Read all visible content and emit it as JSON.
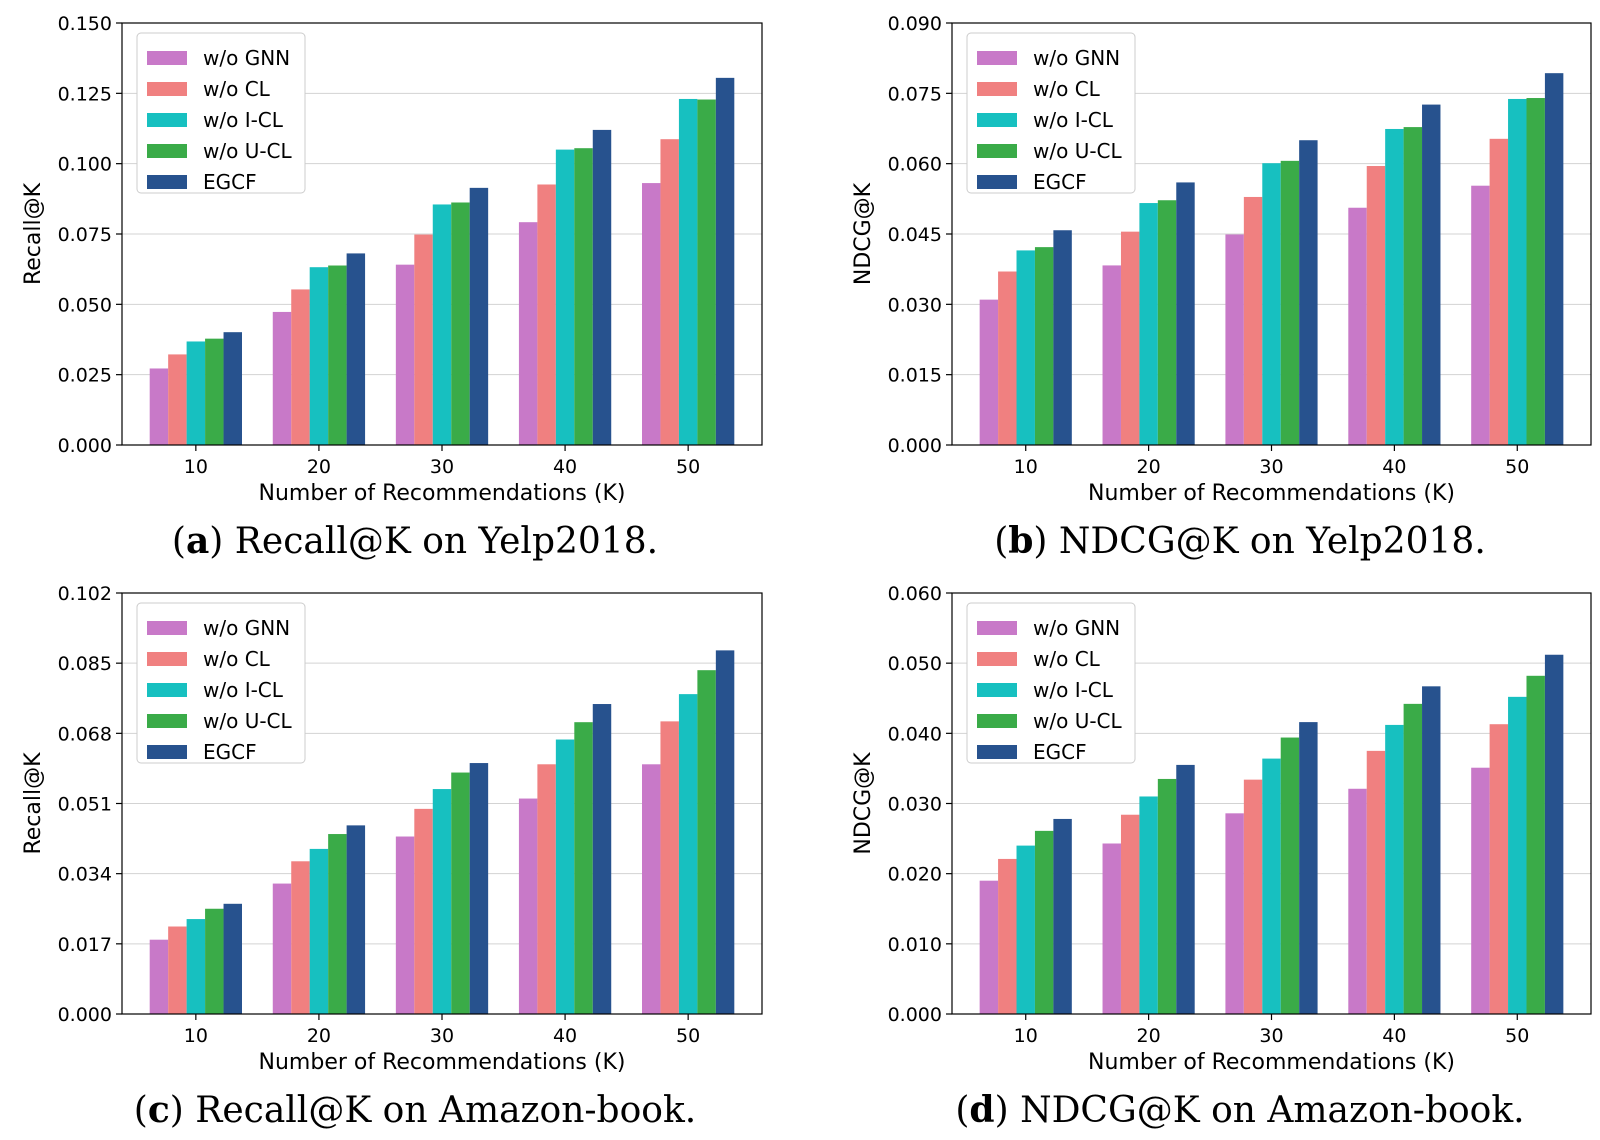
{
  "colors": {
    "w/o GNN": "#c879c8",
    "w/o CL": "#f08080",
    "w/o I-CL": "#17c0c0",
    "w/o U-CL": "#3aab48",
    "EGCF": "#27528e"
  },
  "chart_data": [
    {
      "type": "bar",
      "caption_letter": "(a)",
      "caption_text": " Recall@K on Yelp2018.",
      "xlabel": "Number of Recommendations (K)",
      "ylabel": "Recall@K",
      "categories": [
        "10",
        "20",
        "30",
        "40",
        "50"
      ],
      "ylim": [
        0,
        0.15
      ],
      "yticks": [
        "0.000",
        "0.025",
        "0.050",
        "0.075",
        "0.100",
        "0.125",
        "0.150"
      ],
      "legend_position": "top-left",
      "grid": "horizontal",
      "series": [
        {
          "name": "w/o GNN",
          "values": [
            0.0272,
            0.0473,
            0.0641,
            0.0792,
            0.0931
          ]
        },
        {
          "name": "w/o CL",
          "values": [
            0.0322,
            0.0553,
            0.0748,
            0.0926,
            0.1087
          ]
        },
        {
          "name": "w/o I-CL",
          "values": [
            0.0368,
            0.0632,
            0.0855,
            0.105,
            0.123
          ]
        },
        {
          "name": "w/o U-CL",
          "values": [
            0.0378,
            0.0638,
            0.0862,
            0.1055,
            0.1228
          ]
        },
        {
          "name": "EGCF",
          "values": [
            0.0401,
            0.0681,
            0.0914,
            0.112,
            0.1305
          ]
        }
      ]
    },
    {
      "type": "bar",
      "caption_letter": "(b)",
      "caption_text": " NDCG@K on Yelp2018.",
      "xlabel": "Number of Recommendations (K)",
      "ylabel": "NDCG@K",
      "categories": [
        "10",
        "20",
        "30",
        "40",
        "50"
      ],
      "ylim": [
        0,
        0.09
      ],
      "yticks": [
        "0.000",
        "0.015",
        "0.030",
        "0.045",
        "0.060",
        "0.075",
        "0.090"
      ],
      "legend_position": "top-left",
      "grid": "horizontal",
      "series": [
        {
          "name": "w/o GNN",
          "values": [
            0.031,
            0.0383,
            0.0449,
            0.0506,
            0.0553
          ]
        },
        {
          "name": "w/o CL",
          "values": [
            0.037,
            0.0455,
            0.0529,
            0.0595,
            0.0653
          ]
        },
        {
          "name": "w/o I-CL",
          "values": [
            0.0415,
            0.0516,
            0.0601,
            0.0674,
            0.0738
          ]
        },
        {
          "name": "w/o U-CL",
          "values": [
            0.0422,
            0.0522,
            0.0606,
            0.0678,
            0.074
          ]
        },
        {
          "name": "EGCF",
          "values": [
            0.0458,
            0.056,
            0.065,
            0.0726,
            0.0793
          ]
        }
      ]
    },
    {
      "type": "bar",
      "caption_letter": "(c)",
      "caption_text": " Recall@K on Amazon-book.",
      "xlabel": "Number of Recommendations (K)",
      "ylabel": "Recall@K",
      "categories": [
        "10",
        "20",
        "30",
        "40",
        "50"
      ],
      "ylim": [
        0,
        0.102
      ],
      "yticks": [
        "0.000",
        "0.017",
        "0.034",
        "0.051",
        "0.068",
        "0.085",
        "0.102"
      ],
      "legend_position": "top-left",
      "grid": "horizontal",
      "series": [
        {
          "name": "w/o GNN",
          "values": [
            0.018,
            0.0316,
            0.043,
            0.0522,
            0.0605
          ]
        },
        {
          "name": "w/o CL",
          "values": [
            0.0212,
            0.037,
            0.0497,
            0.0605,
            0.0709
          ]
        },
        {
          "name": "w/o I-CL",
          "values": [
            0.023,
            0.04,
            0.0545,
            0.0665,
            0.0775
          ]
        },
        {
          "name": "w/o U-CL",
          "values": [
            0.0255,
            0.0436,
            0.0585,
            0.0707,
            0.0833
          ]
        },
        {
          "name": "EGCF",
          "values": [
            0.0267,
            0.0457,
            0.0608,
            0.0751,
            0.0881
          ]
        }
      ]
    },
    {
      "type": "bar",
      "caption_letter": "(d)",
      "caption_text": " NDCG@K on Amazon-book.",
      "xlabel": "Number of Recommendations (K)",
      "ylabel": "NDCG@K",
      "categories": [
        "10",
        "20",
        "30",
        "40",
        "50"
      ],
      "ylim": [
        0,
        0.06
      ],
      "yticks": [
        "0.000",
        "0.010",
        "0.020",
        "0.030",
        "0.040",
        "0.050",
        "0.060"
      ],
      "legend_position": "top-left",
      "grid": "horizontal",
      "series": [
        {
          "name": "w/o GNN",
          "values": [
            0.019,
            0.0243,
            0.0286,
            0.0321,
            0.0351
          ]
        },
        {
          "name": "w/o CL",
          "values": [
            0.0221,
            0.0284,
            0.0334,
            0.0375,
            0.0413
          ]
        },
        {
          "name": "w/o I-CL",
          "values": [
            0.024,
            0.031,
            0.0364,
            0.0412,
            0.0452
          ]
        },
        {
          "name": "w/o U-CL",
          "values": [
            0.0261,
            0.0335,
            0.0394,
            0.0442,
            0.0482
          ]
        },
        {
          "name": "EGCF",
          "values": [
            0.0278,
            0.0355,
            0.0416,
            0.0467,
            0.0512
          ]
        }
      ]
    }
  ]
}
